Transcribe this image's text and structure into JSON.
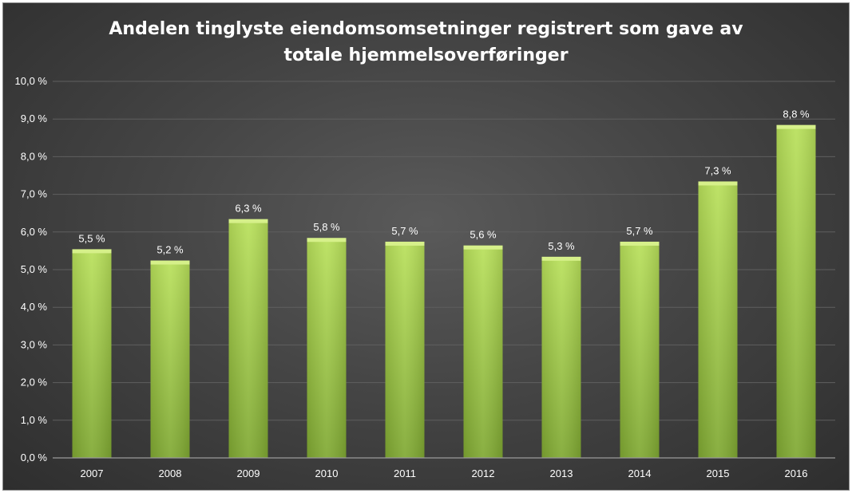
{
  "chart_data": {
    "type": "bar",
    "title_lines": [
      "Andelen tinglyste eiendomsomsetninger registrert som gave av",
      "totale hjemmelsoverføringer"
    ],
    "xlabel": "",
    "ylabel": "",
    "categories": [
      "2007",
      "2008",
      "2009",
      "2010",
      "2011",
      "2012",
      "2013",
      "2014",
      "2015",
      "2016"
    ],
    "values": [
      5.5,
      5.2,
      6.3,
      5.8,
      5.7,
      5.6,
      5.3,
      5.7,
      7.3,
      8.8
    ],
    "value_labels": [
      "5,5 %",
      "5,2 %",
      "6,3 %",
      "5,8 %",
      "5,7 %",
      "5,6 %",
      "5,3 %",
      "5,7 %",
      "7,3 %",
      "8,8 %"
    ],
    "y_ticks": [
      0,
      1,
      2,
      3,
      4,
      5,
      6,
      7,
      8,
      9,
      10
    ],
    "y_tick_labels": [
      "0,0 %",
      "1,0 %",
      "2,0 %",
      "3,0 %",
      "4,0 %",
      "5,0 %",
      "6,0 %",
      "7,0 %",
      "8,0 %",
      "9,0 %",
      "10,0 %"
    ],
    "ylim": [
      0,
      10
    ],
    "grid": true,
    "legend": "none",
    "colors": {
      "bar_light": "#b8e05a",
      "bar_dark": "#7fa832",
      "bar_top": "#d6f08a",
      "background": "#444444",
      "gridline": "#5f5f5f",
      "text": "#ffffff"
    }
  }
}
